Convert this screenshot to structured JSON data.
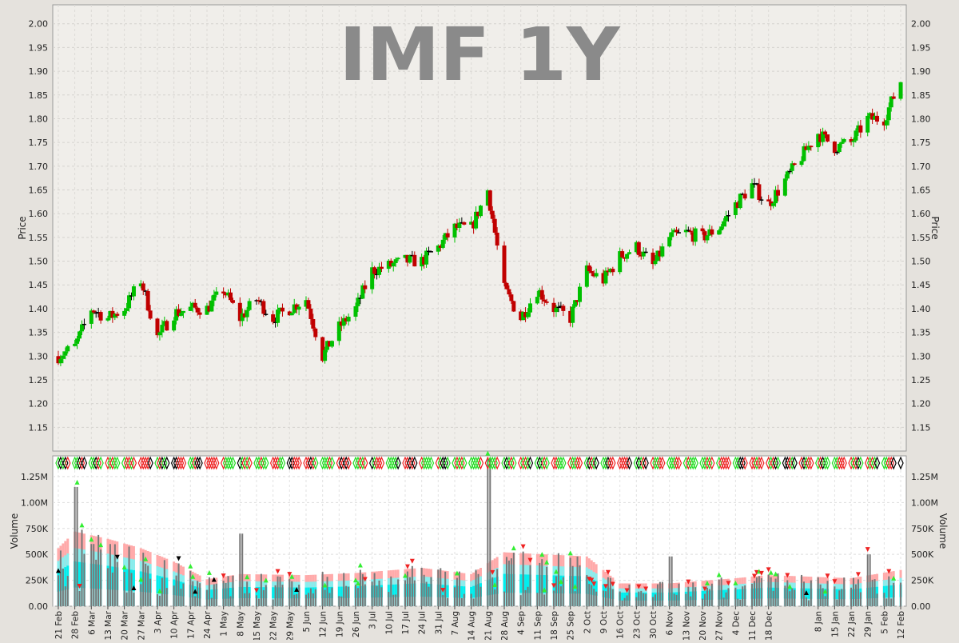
{
  "chart_data": [
    {
      "type": "candlestick",
      "title": "IMF 1Y",
      "ylabel": "Price",
      "ylim": [
        1.1,
        2.04
      ],
      "yticks": [
        1.15,
        1.2,
        1.25,
        1.3,
        1.35,
        1.4,
        1.45,
        1.5,
        1.55,
        1.6,
        1.65,
        1.7,
        1.75,
        1.8,
        1.85,
        1.9,
        1.95,
        2.0
      ],
      "grid": true,
      "colors": {
        "up": "#00c000",
        "down": "#c00000",
        "flat": "#000000",
        "title": "#8a8a8a"
      },
      "closing_price_approx": [
        [
          "21 Feb",
          1.3
        ],
        [
          "28 Feb",
          1.32
        ],
        [
          "6 Mar",
          1.4
        ],
        [
          "13 Mar",
          1.38
        ],
        [
          "20 Mar",
          1.4
        ],
        [
          "27 Mar",
          1.46
        ],
        [
          "3 Apr",
          1.34
        ],
        [
          "10 Apr",
          1.39
        ],
        [
          "17 Apr",
          1.4
        ],
        [
          "24 Apr",
          1.4
        ],
        [
          "1 May",
          1.44
        ],
        [
          "8 May",
          1.38
        ],
        [
          "15 May",
          1.42
        ],
        [
          "22 May",
          1.38
        ],
        [
          "29 May",
          1.4
        ],
        [
          "5 Jun",
          1.42
        ],
        [
          "12 Jun",
          1.3
        ],
        [
          "19 Jun",
          1.36
        ],
        [
          "26 Jun",
          1.4
        ],
        [
          "3 Jul",
          1.48
        ],
        [
          "10 Jul",
          1.49
        ],
        [
          "17 Jul",
          1.5
        ],
        [
          "24 Jul",
          1.5
        ],
        [
          "31 Jul",
          1.53
        ],
        [
          "7 Aug",
          1.57
        ],
        [
          "14 Aug",
          1.57
        ],
        [
          "21 Aug",
          1.65
        ],
        [
          "28 Aug",
          1.44
        ],
        [
          "4 Sep",
          1.38
        ],
        [
          "11 Sep",
          1.44
        ],
        [
          "18 Sep",
          1.4
        ],
        [
          "25 Sep",
          1.38
        ],
        [
          "2 Oct",
          1.48
        ],
        [
          "9 Oct",
          1.46
        ],
        [
          "16 Oct",
          1.51
        ],
        [
          "23 Oct",
          1.53
        ],
        [
          "30 Oct",
          1.49
        ],
        [
          "6 Nov",
          1.55
        ],
        [
          "13 Nov",
          1.56
        ],
        [
          "20 Nov",
          1.55
        ],
        [
          "27 Nov",
          1.57
        ],
        [
          "4 Dec",
          1.62
        ],
        [
          "11 Dec",
          1.66
        ],
        [
          "18 Dec",
          1.62
        ],
        [
          "8 Jan",
          1.77
        ],
        [
          "15 Jan",
          1.74
        ],
        [
          "22 Jan",
          1.75
        ],
        [
          "29 Jan",
          1.8
        ],
        [
          "5 Feb",
          1.8
        ],
        [
          "12 Feb",
          1.88
        ]
      ]
    },
    {
      "type": "bar",
      "ylabel": "Volume",
      "ylim": [
        0,
        1450000
      ],
      "ytick_labels": [
        "0.00",
        "250K",
        "500K",
        "750K",
        "1.00M",
        "1.25M"
      ],
      "ytick_labels_right": [
        "0.00",
        "250K",
        "500K",
        "750K",
        "1.00M",
        "1.25M"
      ],
      "ytick_values": [
        0,
        250000,
        500000,
        750000,
        1000000,
        1250000
      ],
      "left_axis_top_label": "1.25M",
      "grid": true,
      "band_colors": {
        "outer": "#ffaaaa",
        "mid": "#88eeee",
        "inner": "#00eeee",
        "bar": "#777777"
      },
      "x_tick_labels": [
        "21 Feb",
        "28 Feb",
        "6 Mar",
        "13 Mar",
        "20 Mar",
        "27 Mar",
        "3 Apr",
        "10 Apr",
        "17 Apr",
        "24 Apr",
        "1 May",
        "8 May",
        "15 May",
        "22 May",
        "29 May",
        "5 Jun",
        "12 Jun",
        "19 Jun",
        "26 Jun",
        "3 Jul",
        "10 Jul",
        "17 Jul",
        "24 Jul",
        "31 Jul",
        "7 Aug",
        "14 Aug",
        "21 Aug",
        "28 Aug",
        "4 Sep",
        "11 Sep",
        "18 Sep",
        "25 Sep",
        "2 Oct",
        "9 Oct",
        "16 Oct",
        "23 Oct",
        "30 Oct",
        "6 Nov",
        "13 Nov",
        "20 Nov",
        "27 Nov",
        "4 Dec",
        "11 Dec",
        "18 Dec",
        "8 Jan",
        "15 Jan",
        "22 Jan",
        "29 Jan",
        "5 Feb",
        "12 Feb"
      ],
      "volume_peaks_approx": [
        [
          "28 Feb",
          1150000
        ],
        [
          "6 Mar",
          600000
        ],
        [
          "8 May",
          700000
        ],
        [
          "21 Aug",
          1430000
        ],
        [
          "6 Nov",
          480000
        ],
        [
          "29 Jan",
          500000
        ]
      ],
      "outer_band_level_approx": [
        [
          "21 Feb",
          560000
        ],
        [
          "28 Feb",
          720000
        ],
        [
          "13 Mar",
          650000
        ],
        [
          "27 Mar",
          560000
        ],
        [
          "10 Apr",
          430000
        ],
        [
          "24 Apr",
          260000
        ],
        [
          "8 May",
          310000
        ],
        [
          "5 Jun",
          300000
        ],
        [
          "26 Jun",
          320000
        ],
        [
          "24 Jul",
          370000
        ],
        [
          "14 Aug",
          310000
        ],
        [
          "28 Aug",
          520000
        ],
        [
          "2 Oct",
          480000
        ],
        [
          "16 Oct",
          220000
        ],
        [
          "6 Nov",
          220000
        ],
        [
          "4 Dec",
          270000
        ],
        [
          "18 Dec",
          300000
        ],
        [
          "22 Jan",
          270000
        ],
        [
          "12 Feb",
          350000
        ]
      ]
    }
  ]
}
